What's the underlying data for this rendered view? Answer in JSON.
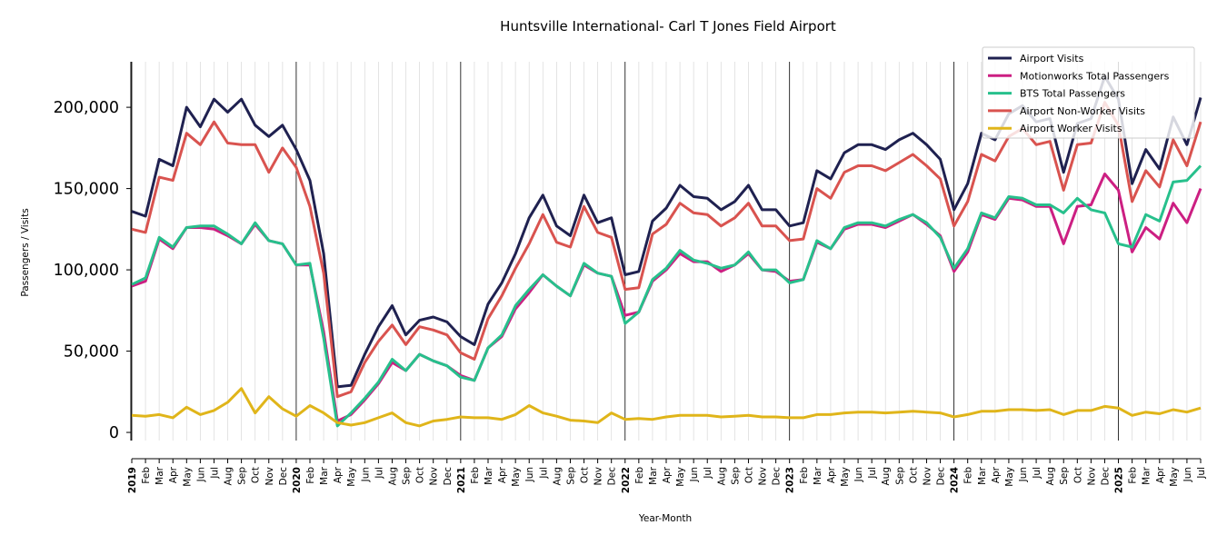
{
  "chart_data": {
    "type": "line",
    "title": "Huntsville International- Carl T Jones Field Airport",
    "xlabel": "Year-Month",
    "ylabel": "Passengers / Visits",
    "ylim": [
      -5000,
      228000
    ],
    "yticks": [
      0,
      50000,
      100000,
      150000,
      200000
    ],
    "ytick_labels": [
      "0",
      "50,000",
      "100,000",
      "150,000",
      "200,000"
    ],
    "grid": "vertical minor lines per month; major lines at each January",
    "legend_position": "top-right",
    "x_ticks": [
      "2019",
      "Feb",
      "Mar",
      "Apr",
      "May",
      "Jun",
      "Jul",
      "Aug",
      "Sep",
      "Oct",
      "Nov",
      "Dec",
      "2020",
      "Feb",
      "Mar",
      "Apr",
      "May",
      "Jun",
      "Jul",
      "Aug",
      "Sep",
      "Oct",
      "Nov",
      "Dec",
      "2021",
      "Feb",
      "Mar",
      "Apr",
      "May",
      "Jun",
      "Jul",
      "Aug",
      "Sep",
      "Oct",
      "Nov",
      "Dec",
      "2022",
      "Feb",
      "Mar",
      "Apr",
      "May",
      "Jun",
      "Jul",
      "Aug",
      "Sep",
      "Oct",
      "Nov",
      "Dec",
      "2023",
      "Feb",
      "Mar",
      "Apr",
      "May",
      "Jun",
      "Jul",
      "Aug",
      "Sep",
      "Oct",
      "Nov",
      "Dec",
      "2024",
      "Feb",
      "Mar",
      "Apr",
      "May",
      "Jun",
      "Jul",
      "Aug",
      "Sep",
      "Oct",
      "Nov",
      "Dec",
      "2025",
      "Feb",
      "Mar",
      "Apr",
      "May",
      "Jun",
      "Jul"
    ],
    "series": [
      {
        "name": "Airport Visits",
        "color": "#1f2150",
        "values": [
          136000,
          133000,
          168000,
          164000,
          200000,
          188000,
          205000,
          197000,
          205000,
          189000,
          182000,
          189000,
          174000,
          155000,
          110000,
          28000,
          29000,
          48000,
          65000,
          78000,
          60000,
          69000,
          71000,
          68000,
          59000,
          54000,
          79000,
          92000,
          110000,
          132000,
          146000,
          127000,
          121000,
          146000,
          129000,
          132000,
          97000,
          99000,
          130000,
          138000,
          152000,
          145000,
          144000,
          137000,
          142000,
          152000,
          137000,
          137000,
          127000,
          129000,
          161000,
          156000,
          172000,
          177000,
          177000,
          174000,
          180000,
          184000,
          177000,
          168000,
          137000,
          153000,
          184000,
          180000,
          196000,
          201000,
          191000,
          193000,
          160000,
          190000,
          193000,
          219000,
          205000,
          153000,
          174000,
          162000,
          194000,
          177000,
          206000
        ]
      },
      {
        "name": "Motionworks Total Passengers",
        "color": "#cc1f82",
        "values": [
          90000,
          93000,
          119000,
          113000,
          126000,
          126000,
          125000,
          121000,
          116000,
          128000,
          118000,
          116000,
          103000,
          103000,
          62000,
          7000,
          11000,
          20000,
          30000,
          43000,
          38000,
          48000,
          44000,
          41000,
          35000,
          32000,
          52000,
          59000,
          76000,
          86000,
          97000,
          90000,
          84000,
          103000,
          98000,
          96000,
          72000,
          74000,
          93000,
          100000,
          110000,
          105000,
          105000,
          99000,
          103000,
          110000,
          100000,
          99000,
          93000,
          94000,
          117000,
          113000,
          125000,
          128000,
          128000,
          126000,
          130000,
          134000,
          128000,
          121000,
          99000,
          111000,
          134000,
          131000,
          144000,
          143000,
          139000,
          139000,
          116000,
          139000,
          140000,
          159000,
          149000,
          111000,
          126000,
          119000,
          141000,
          129000,
          150000
        ]
      },
      {
        "name": "BTS Total Passengers",
        "color": "#27c08c",
        "values": [
          91000,
          95000,
          120000,
          114000,
          126000,
          127000,
          127000,
          122000,
          116000,
          129000,
          118000,
          116000,
          103000,
          104000,
          58000,
          4000,
          12000,
          21000,
          31000,
          45000,
          38000,
          48000,
          44000,
          41000,
          34000,
          32000,
          52000,
          60000,
          78000,
          88000,
          97000,
          90000,
          84000,
          104000,
          98000,
          96000,
          67000,
          74000,
          94000,
          101000,
          112000,
          106000,
          104000,
          101000,
          103000,
          111000,
          100000,
          100000,
          92000,
          94000,
          118000,
          113000,
          126000,
          129000,
          129000,
          127000,
          131000,
          134000,
          129000,
          120000,
          101000,
          113000,
          135000,
          132000,
          145000,
          144000,
          140000,
          140000,
          135000,
          144000,
          137000,
          135000,
          116000,
          114000,
          134000,
          130000,
          154000,
          155000,
          164000
        ]
      },
      {
        "name": "Airport Non-Worker Visits",
        "color": "#d9534f",
        "values": [
          125000,
          123000,
          157000,
          155000,
          184000,
          177000,
          191000,
          178000,
          177000,
          177000,
          160000,
          175000,
          163000,
          139000,
          98000,
          22000,
          25000,
          43000,
          56000,
          66000,
          54000,
          65000,
          63000,
          60000,
          49000,
          45000,
          70000,
          84000,
          101000,
          116000,
          134000,
          117000,
          114000,
          139000,
          123000,
          120000,
          88000,
          89000,
          122000,
          128000,
          141000,
          135000,
          134000,
          127000,
          132000,
          141000,
          127000,
          127000,
          118000,
          119000,
          150000,
          144000,
          160000,
          164000,
          164000,
          161000,
          166000,
          171000,
          164000,
          156000,
          127000,
          142000,
          171000,
          167000,
          182000,
          187000,
          177000,
          179000,
          149000,
          177000,
          178000,
          203000,
          189000,
          142000,
          161000,
          151000,
          180000,
          164000,
          191000
        ]
      },
      {
        "name": "Airport Worker Visits",
        "color": "#e0b51a",
        "values": [
          10500,
          10000,
          11000,
          9000,
          15500,
          11000,
          13500,
          18500,
          27000,
          12000,
          22000,
          14500,
          10000,
          16500,
          12000,
          6000,
          4500,
          6000,
          9000,
          12000,
          6000,
          4000,
          7000,
          8000,
          9500,
          9000,
          9000,
          8000,
          11000,
          16500,
          12000,
          10000,
          7500,
          7000,
          6000,
          12000,
          8000,
          8500,
          8000,
          9500,
          10500,
          10500,
          10500,
          9500,
          10000,
          10500,
          9500,
          9500,
          9000,
          9000,
          11000,
          11000,
          12000,
          12500,
          12500,
          12000,
          12500,
          13000,
          12500,
          12000,
          9500,
          11000,
          13000,
          13000,
          14000,
          14000,
          13500,
          14000,
          11000,
          13500,
          13500,
          16000,
          15000,
          10500,
          12500,
          11500,
          14000,
          12500,
          15000
        ]
      }
    ]
  }
}
